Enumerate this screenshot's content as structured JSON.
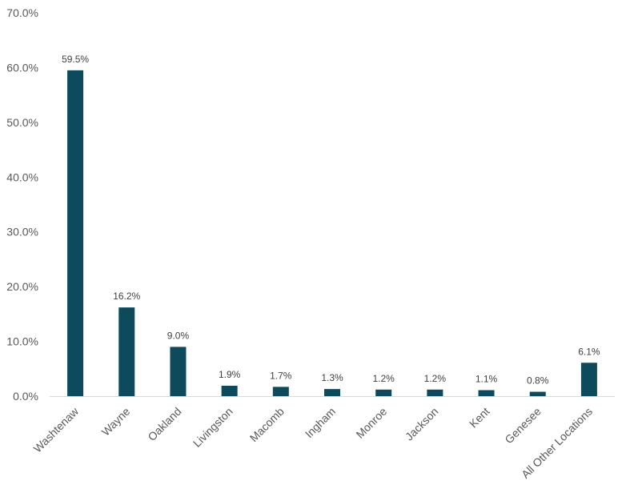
{
  "chart_data": {
    "type": "bar",
    "categories": [
      "Washtenaw",
      "Wayne",
      "Oakland",
      "Livingston",
      "Macomb",
      "Ingham",
      "Monroe",
      "Jackson",
      "Kent",
      "Genesee",
      "All Other Locations"
    ],
    "values": [
      59.5,
      16.2,
      9.0,
      1.9,
      1.7,
      1.3,
      1.2,
      1.2,
      1.1,
      0.8,
      6.1
    ],
    "data_labels": [
      "59.5%",
      "16.2%",
      "9.0%",
      "1.9%",
      "1.7%",
      "1.3%",
      "1.2%",
      "1.2%",
      "1.1%",
      "0.8%",
      "6.1%"
    ],
    "y_ticks": [
      0,
      10,
      20,
      30,
      40,
      50,
      60,
      70
    ],
    "y_tick_labels": [
      "0.0%",
      "10.0%",
      "20.0%",
      "30.0%",
      "40.0%",
      "50.0%",
      "60.0%",
      "70.0%"
    ],
    "ylim": [
      0,
      70
    ],
    "title": "",
    "xlabel": "",
    "ylabel": "",
    "grid": false,
    "legend": "none",
    "colors": {
      "bar": "#0d4a5c",
      "axis": "#d9d9d9"
    }
  }
}
